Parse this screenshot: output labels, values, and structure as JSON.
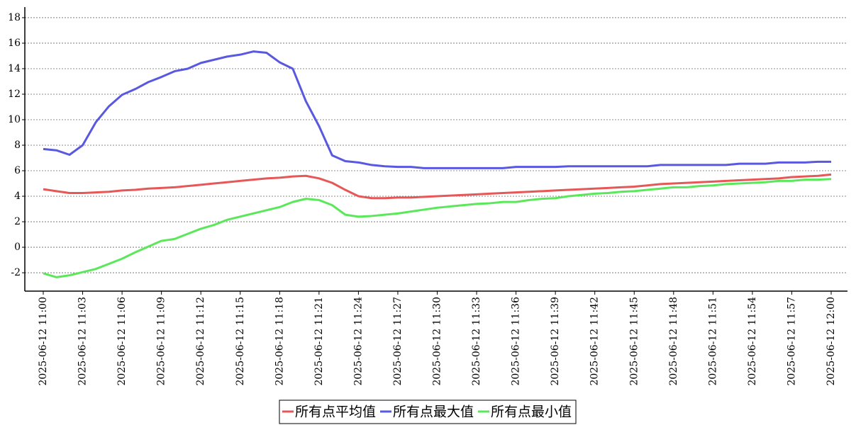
{
  "chart_data": {
    "type": "line",
    "categories": [
      "2025-06-12 11:00",
      null,
      null,
      "2025-06-12 11:03",
      null,
      null,
      "2025-06-12 11:06",
      null,
      null,
      "2025-06-12 11:09",
      null,
      null,
      "2025-06-12 11:12",
      null,
      null,
      "2025-06-12 11:15",
      null,
      null,
      "2025-06-12 11:18",
      null,
      null,
      "2025-06-12 11:21",
      null,
      null,
      "2025-06-12 11:24",
      null,
      null,
      "2025-06-12 11:27",
      null,
      null,
      "2025-06-12 11:30",
      null,
      null,
      "2025-06-12 11:33",
      null,
      null,
      "2025-06-12 11:36",
      null,
      null,
      "2025-06-12 11:39",
      null,
      null,
      "2025-06-12 11:42",
      null,
      null,
      "2025-06-12 11:45",
      null,
      null,
      "2025-06-12 11:48",
      null,
      null,
      "2025-06-12 11:51",
      null,
      null,
      "2025-06-12 11:54",
      null,
      null,
      "2025-06-12 11:57",
      null,
      null,
      "2025-06-12 12:00"
    ],
    "series": [
      {
        "name": "所有点平均值",
        "color": "#e65858",
        "values": [
          4.55,
          4.4,
          4.25,
          4.25,
          4.3,
          4.35,
          4.45,
          4.5,
          4.6,
          4.65,
          4.7,
          4.8,
          4.9,
          5.0,
          5.1,
          5.2,
          5.3,
          5.4,
          5.45,
          5.55,
          5.6,
          5.4,
          5.05,
          4.5,
          4.0,
          3.85,
          3.85,
          3.9,
          3.9,
          3.95,
          4.0,
          4.05,
          4.1,
          4.15,
          4.2,
          4.25,
          4.3,
          4.35,
          4.4,
          4.45,
          4.5,
          4.55,
          4.6,
          4.65,
          4.7,
          4.75,
          4.85,
          4.95,
          5.0,
          5.05,
          5.1,
          5.15,
          5.2,
          5.25,
          5.3,
          5.35,
          5.4,
          5.5,
          5.55,
          5.6,
          5.7
        ]
      },
      {
        "name": "所有点最大值",
        "color": "#5858e0",
        "values": [
          7.7,
          7.6,
          7.25,
          8.0,
          9.8,
          11.05,
          11.95,
          12.4,
          12.95,
          13.35,
          13.8,
          14.0,
          14.45,
          14.7,
          14.95,
          15.1,
          15.35,
          15.25,
          14.5,
          14.0,
          11.45,
          9.5,
          7.2,
          6.75,
          6.65,
          6.45,
          6.35,
          6.3,
          6.3,
          6.2,
          6.2,
          6.2,
          6.2,
          6.2,
          6.2,
          6.2,
          6.3,
          6.3,
          6.3,
          6.3,
          6.35,
          6.35,
          6.35,
          6.35,
          6.35,
          6.35,
          6.35,
          6.45,
          6.45,
          6.45,
          6.45,
          6.45,
          6.45,
          6.55,
          6.55,
          6.55,
          6.65,
          6.65,
          6.65,
          6.7,
          6.7
        ]
      },
      {
        "name": "所有点最小值",
        "color": "#5ae85a",
        "values": [
          -2.05,
          -2.35,
          -2.2,
          -1.95,
          -1.7,
          -1.3,
          -0.9,
          -0.4,
          0.05,
          0.5,
          0.65,
          1.05,
          1.45,
          1.75,
          2.15,
          2.4,
          2.65,
          2.9,
          3.15,
          3.55,
          3.8,
          3.7,
          3.3,
          2.55,
          2.4,
          2.45,
          2.55,
          2.65,
          2.8,
          2.95,
          3.1,
          3.2,
          3.3,
          3.4,
          3.45,
          3.55,
          3.55,
          3.7,
          3.8,
          3.85,
          4.0,
          4.1,
          4.2,
          4.25,
          4.35,
          4.4,
          4.5,
          4.6,
          4.7,
          4.7,
          4.8,
          4.85,
          4.95,
          5.0,
          5.05,
          5.1,
          5.2,
          5.2,
          5.3,
          5.3,
          5.35
        ]
      }
    ],
    "ylim": [
      -3.44,
      18.83
    ],
    "yticks": [
      -2,
      0,
      2,
      4,
      6,
      8,
      10,
      12,
      14,
      16,
      18
    ],
    "grid": true,
    "legend": "bottom"
  }
}
